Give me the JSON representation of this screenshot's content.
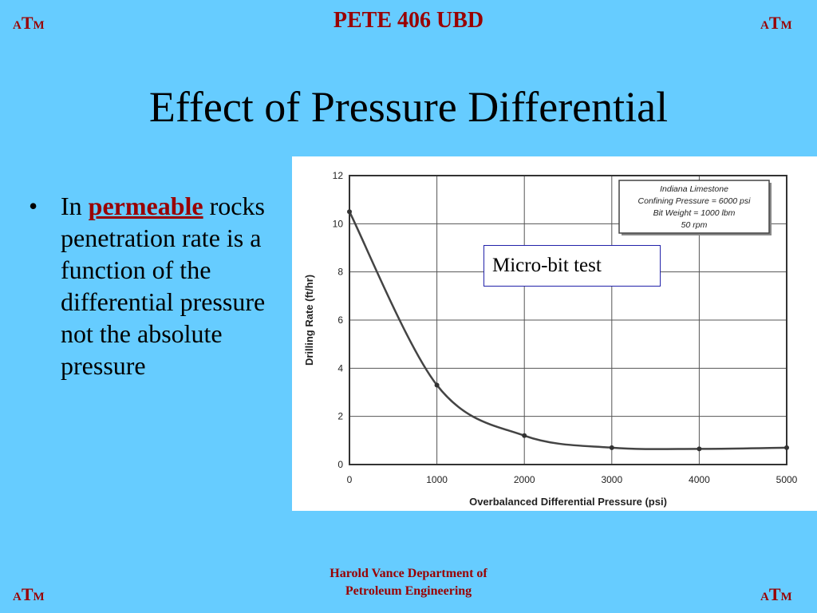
{
  "header": {
    "logo": {
      "a": "A",
      "t": "T",
      "m": "M"
    },
    "course": "PETE 406 UBD"
  },
  "slide": {
    "title": "Effect of Pressure Differential",
    "bullet": {
      "prefix": "In",
      "keyword": "permeable",
      "rest": "rocks penetration rate is a function of the differential pressure not the absolute pressure"
    },
    "callout": "Micro-bit test"
  },
  "footer": {
    "line1": "Harold Vance Department of",
    "line2": "Petroleum Engineering"
  },
  "colors": {
    "background": "#66ccff",
    "accent": "#990000",
    "curve": "#444444"
  },
  "chart_data": {
    "type": "line",
    "xlabel": "Overbalanced Differential Pressure (psi)",
    "ylabel": "Drilling Rate (ft/hr)",
    "xlim": [
      0,
      5000
    ],
    "ylim": [
      0,
      12
    ],
    "xticks": [
      0,
      1000,
      2000,
      3000,
      4000,
      5000
    ],
    "yticks": [
      0,
      2,
      4,
      6,
      8,
      10,
      12
    ],
    "grid": true,
    "legend_lines": [
      "Indiana Limestone",
      "Confining Pressure = 6000 psi",
      "Bit Weight = 1000 lbm",
      "50 rpm"
    ],
    "series": [
      {
        "x": [
          0,
          1000,
          2000,
          3000,
          4000,
          5000
        ],
        "y": [
          10.5,
          3.3,
          1.2,
          0.7,
          0.65,
          0.7
        ]
      }
    ]
  }
}
